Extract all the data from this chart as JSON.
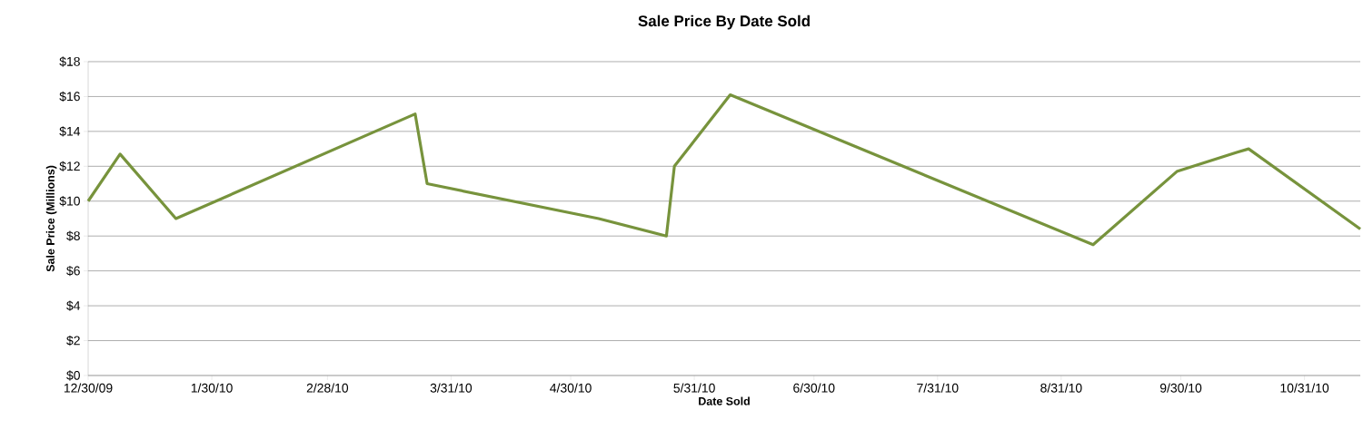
{
  "chart_data": {
    "type": "line",
    "title": "Sale Price By Date Sold",
    "xlabel": "Date Sold",
    "ylabel": "Sale Price (Millions)",
    "x": [
      "2009-12-30",
      "2010-01-07",
      "2010-01-21",
      "2010-03-22",
      "2010-03-25",
      "2010-05-07",
      "2010-05-24",
      "2010-05-26",
      "2010-06-09",
      "2010-09-08",
      "2010-09-29",
      "2010-10-14",
      "2010-10-17",
      "2010-11-14"
    ],
    "series": [
      {
        "color": "#77933c",
        "values": [
          10.0,
          12.7,
          9.0,
          15.0,
          11.0,
          9.0,
          8.0,
          12.0,
          16.1,
          7.5,
          11.7,
          12.8,
          13.0,
          8.4
        ]
      }
    ],
    "xlim": [
      "2009-12-30",
      "2010-11-14"
    ],
    "xticks": [
      {
        "value": "2009-12-30",
        "label": "12/30/09"
      },
      {
        "value": "2010-01-30",
        "label": "1/30/10"
      },
      {
        "value": "2010-02-28",
        "label": "2/28/10"
      },
      {
        "value": "2010-03-31",
        "label": "3/31/10"
      },
      {
        "value": "2010-04-30",
        "label": "4/30/10"
      },
      {
        "value": "2010-05-31",
        "label": "5/31/10"
      },
      {
        "value": "2010-06-30",
        "label": "6/30/10"
      },
      {
        "value": "2010-07-31",
        "label": "7/31/10"
      },
      {
        "value": "2010-08-31",
        "label": "8/31/10"
      },
      {
        "value": "2010-09-30",
        "label": "9/30/10"
      },
      {
        "value": "2010-10-31",
        "label": "10/31/10"
      }
    ],
    "ylim": [
      0,
      18
    ],
    "yticks": [
      {
        "value": 0,
        "label": "$0"
      },
      {
        "value": 2,
        "label": "$2"
      },
      {
        "value": 4,
        "label": "$4"
      },
      {
        "value": 6,
        "label": "$6"
      },
      {
        "value": 8,
        "label": "$8"
      },
      {
        "value": 10,
        "label": "$10"
      },
      {
        "value": 12,
        "label": "$12"
      },
      {
        "value": 14,
        "label": "$14"
      },
      {
        "value": 16,
        "label": "$16"
      },
      {
        "value": 18,
        "label": "$18"
      }
    ],
    "grid": "y",
    "marker": "none",
    "line_style": "solid"
  }
}
